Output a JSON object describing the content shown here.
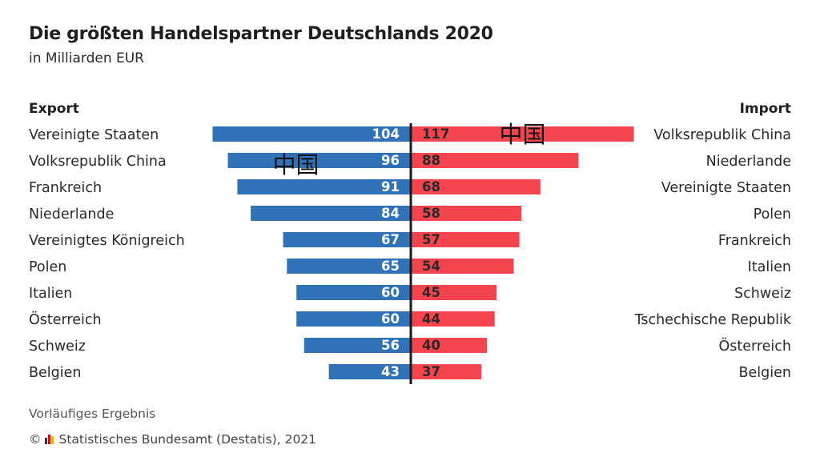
{
  "title": "Die größten Handelspartner Deutschlands 2020",
  "subtitle": "in Milliarden EUR",
  "export_heading": "Export",
  "import_heading": "Import",
  "note": "Vorläufiges Ergebnis",
  "copyright_symbol": "©",
  "source": "Statistisches Bundesamt (Destatis), 2021",
  "colors": {
    "export": "#3072b8",
    "import": "#f5444d",
    "axis": "#1a1a1a"
  },
  "annotations": [
    {
      "text": "中国",
      "side": "export",
      "category": "Volksrepublik China"
    },
    {
      "text": "中国",
      "side": "import",
      "category": "Volksrepublik China"
    }
  ],
  "chart_data": {
    "type": "bar",
    "title": "Die größten Handelspartner Deutschlands 2020",
    "unit": "Milliarden EUR",
    "xlim": [
      0,
      130
    ],
    "series": [
      {
        "name": "Export",
        "direction": "left",
        "categories": [
          "Vereinigte Staaten",
          "Volksrepublik China",
          "Frankreich",
          "Niederlande",
          "Vereinigtes Königreich",
          "Polen",
          "Italien",
          "Österreich",
          "Schweiz",
          "Belgien"
        ],
        "values": [
          104,
          96,
          91,
          84,
          67,
          65,
          60,
          60,
          56,
          43
        ]
      },
      {
        "name": "Import",
        "direction": "right",
        "categories": [
          "Volksrepublik China",
          "Niederlande",
          "Vereinigte Staaten",
          "Polen",
          "Frankreich",
          "Italien",
          "Schweiz",
          "Tschechische Republik",
          "Österreich",
          "Belgien"
        ],
        "values": [
          117,
          88,
          68,
          58,
          57,
          54,
          45,
          44,
          40,
          37
        ]
      }
    ]
  }
}
